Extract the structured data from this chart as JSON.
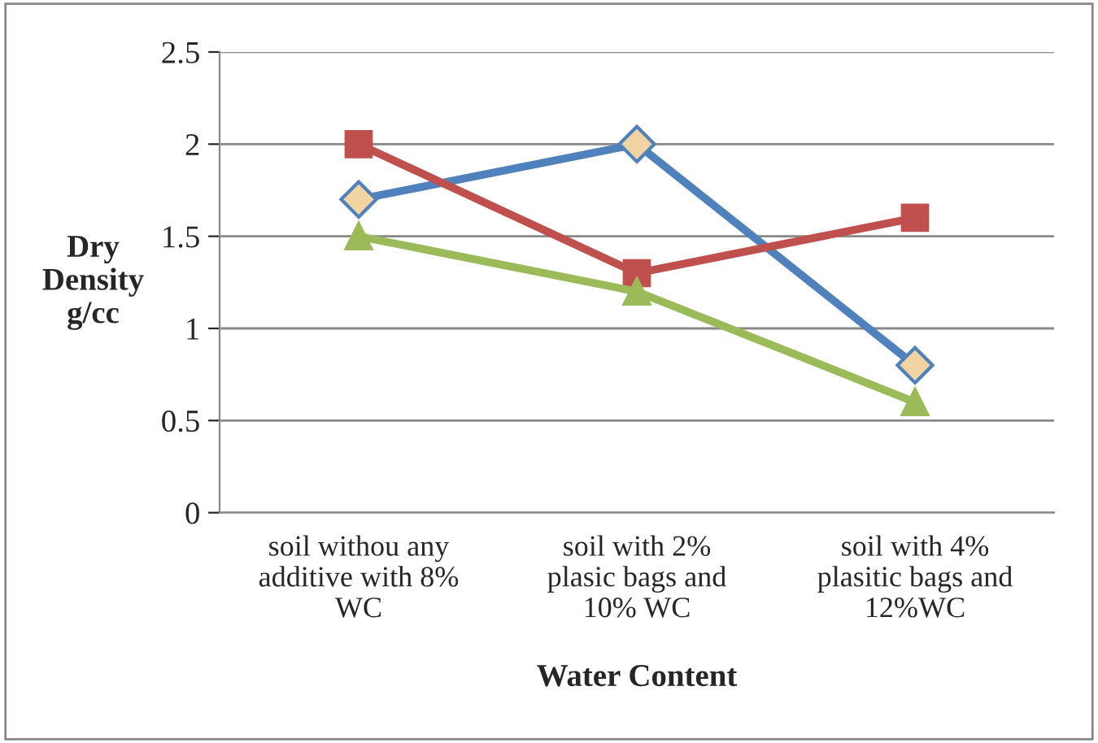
{
  "chart_data": {
    "type": "line",
    "categories": [
      "soil withou any\nadditive with 8%\nWC",
      "soil with 2%\nplasic bags and\n10% WC",
      "soil with 4%\nplasitic bags and\n12%WC"
    ],
    "series": [
      {
        "color": "#4f81bd",
        "marker": "diamond",
        "values": [
          1.7,
          2.0,
          0.8
        ]
      },
      {
        "color": "#c0504d",
        "marker": "square",
        "values": [
          2.0,
          1.3,
          1.6
        ]
      },
      {
        "color": "#9bbb59",
        "marker": "triangle",
        "values": [
          1.5,
          1.2,
          0.6
        ]
      }
    ],
    "xlabel": "Water Content",
    "ylabel": "Dry\nDensity\ng/cc",
    "ylim": [
      0,
      2.5
    ],
    "yticks": [
      0,
      0.5,
      1,
      1.5,
      2,
      2.5
    ],
    "grid": "y",
    "legend": false,
    "line_style": "solid"
  }
}
